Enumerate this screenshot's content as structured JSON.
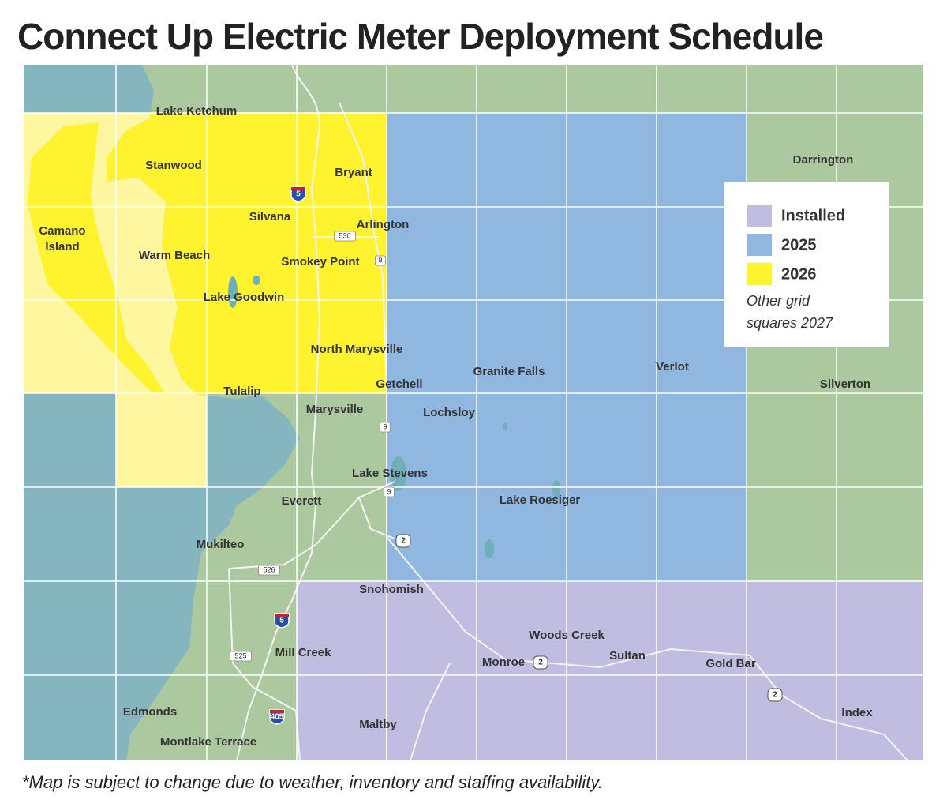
{
  "title": "Connect Up Electric Meter Deployment Schedule",
  "places": [
    "Lake Ketchum",
    "Stanwood",
    "Bryant",
    [
      "Camano",
      "Island"
    ],
    "Darrington",
    "Silvana",
    "Arlington",
    "Warm Beach",
    "Smokey Point",
    "Lake Goodwin",
    "North Marysville",
    "Granite Falls",
    "Verlot",
    "Silverton",
    "Getchell",
    "Tulalip",
    "Marysville",
    "Lochsloy",
    "Lake Stevens",
    "Lake Roesiger",
    "Everett",
    "Mukilteo",
    "Snohomish",
    "Woods Creek",
    "Sultan",
    "Mill Creek",
    "Monroe",
    "Gold Bar",
    "Edmonds",
    "Index",
    "Maltby",
    "Montlake Terrace"
  ],
  "shields": [
    "5",
    "530",
    "9",
    "9",
    "9",
    "2",
    "526",
    "5",
    "525",
    "2",
    "2",
    "405"
  ],
  "legend": {
    "items": [
      "Installed",
      "2025",
      "2026"
    ],
    "note": [
      "Other grid",
      "squares 2027"
    ]
  },
  "footnote": "*Map is subject to change due to weather, inventory and staffing availability."
}
